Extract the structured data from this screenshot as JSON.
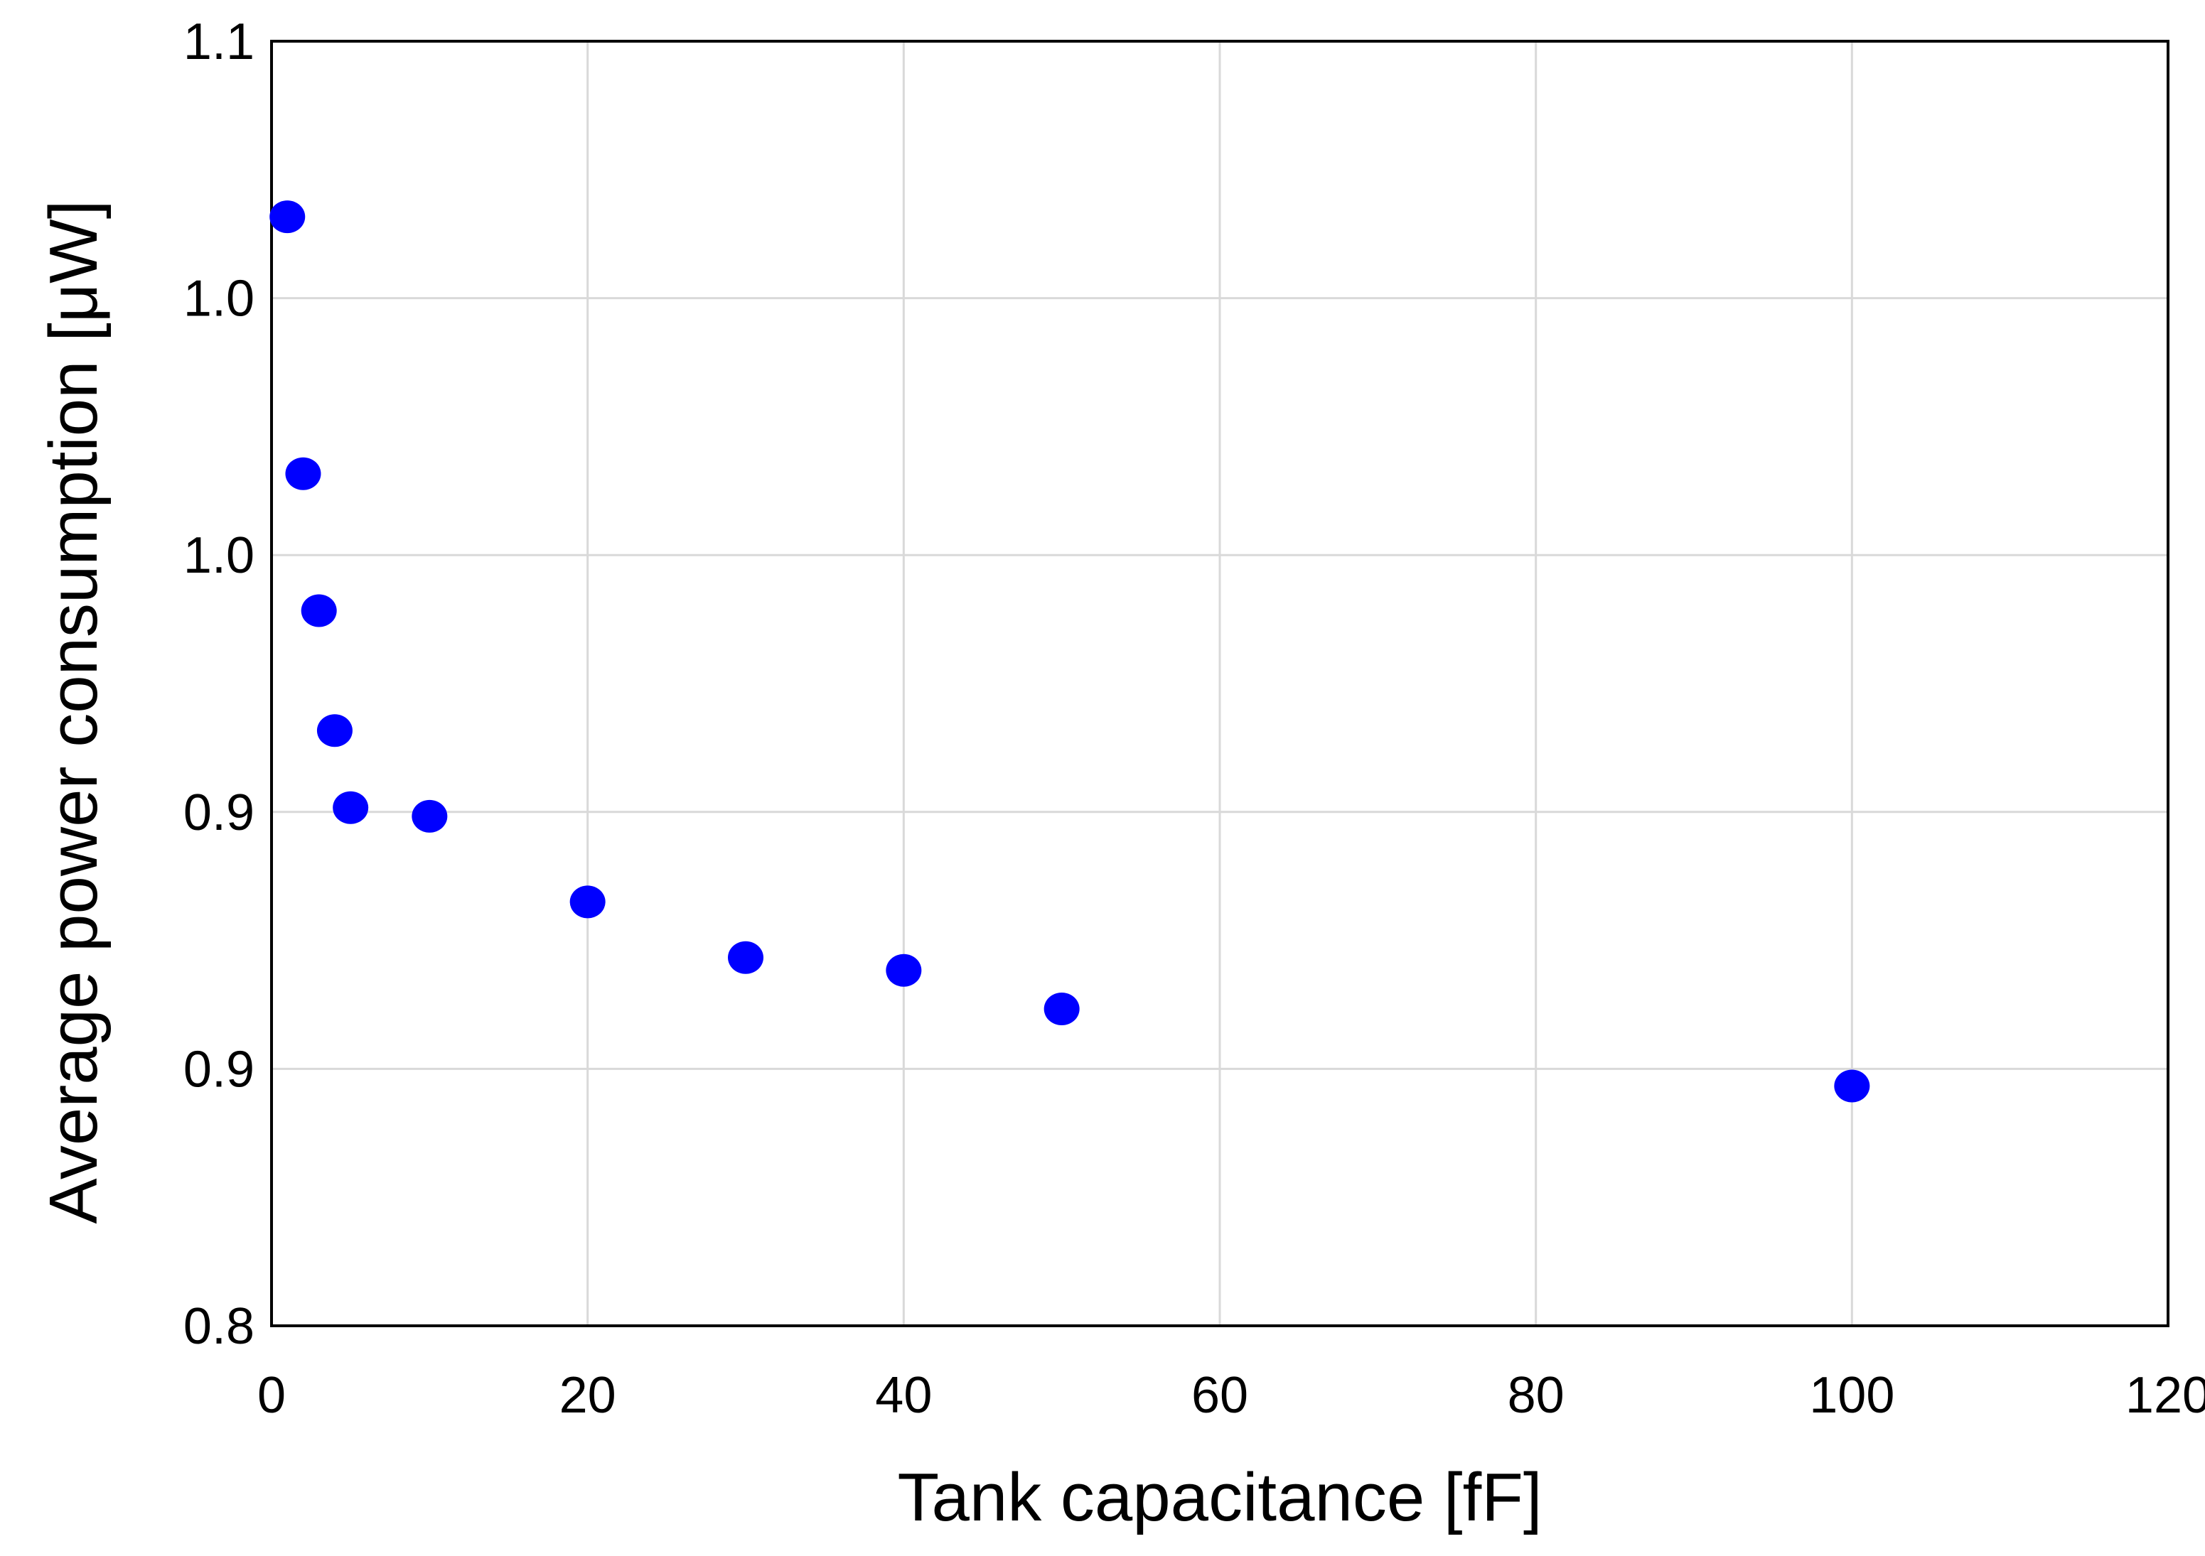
{
  "chart_data": {
    "type": "scatter",
    "title": "",
    "xlabel": "Tank capacitance [fF]",
    "ylabel": "Average power consumption [μW]",
    "xlim": [
      0,
      120
    ],
    "ylim": [
      0.8,
      1.1
    ],
    "x_ticks": [
      0,
      20,
      40,
      60,
      80,
      100,
      120
    ],
    "x_tick_labels": [
      "0",
      "20",
      "40",
      "60",
      "80",
      "100",
      "120"
    ],
    "y_ticks": [
      0.8,
      0.86,
      0.92,
      0.98,
      1.04,
      1.1
    ],
    "y_tick_labels": [
      "0.8",
      "0.9",
      "0.9",
      "1.0",
      "1.0",
      "1.1"
    ],
    "grid": true,
    "legend": "none",
    "marker_color": "#0000ff",
    "series": [
      {
        "x": [
          1,
          2,
          3,
          4,
          5,
          10,
          20,
          30,
          40,
          50,
          100
        ],
        "y": [
          1.059,
          0.999,
          0.967,
          0.939,
          0.921,
          0.919,
          0.899,
          0.886,
          0.883,
          0.874,
          0.856
        ]
      }
    ]
  }
}
